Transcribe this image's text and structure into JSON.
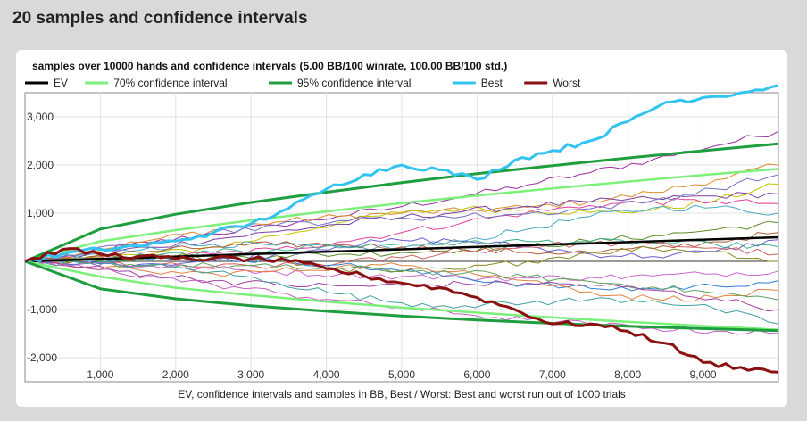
{
  "page": {
    "title": "20 samples and confidence intervals"
  },
  "chart_data": {
    "type": "line",
    "title": "samples over 10000 hands and confidence intervals (5.00 BB/100 winrate, 100.00 BB/100 std.)",
    "xlabel": "EV, confidence intervals and samples in BB, Best / Worst: Best and worst run out of 1000 trials",
    "ylabel": "",
    "xlim": [
      0,
      10000
    ],
    "ylim": [
      -2500,
      3500
    ],
    "x_ticks": [
      1000,
      2000,
      3000,
      4000,
      5000,
      6000,
      7000,
      8000,
      9000
    ],
    "x_tick_labels": [
      "1,000",
      "2,000",
      "3,000",
      "4,000",
      "5,000",
      "6,000",
      "7,000",
      "8,000",
      "9,000"
    ],
    "y_ticks": [
      -2000,
      -1000,
      1000,
      2000,
      3000
    ],
    "y_tick_labels": [
      "-2,000",
      "-1,000",
      "1,000",
      "2,000",
      "3,000"
    ],
    "grid": true,
    "legend_position": "top",
    "winrate_bb_per_100": 5.0,
    "std_bb_per_100": 100.0,
    "series": [
      {
        "name": "EV",
        "color": "#000000",
        "x": [
          0,
          10000
        ],
        "values": [
          0,
          500
        ]
      },
      {
        "name": "70% confidence interval",
        "color": "#7cf07a",
        "x": [
          0,
          1000,
          2000,
          3000,
          4000,
          5000,
          6000,
          7000,
          8000,
          9000,
          10000
        ],
        "values_upper": [
          0,
          416,
          648,
          852,
          1037,
          1207,
          1365,
          1514,
          1656,
          1790,
          1919
        ],
        "values_lower": [
          0,
          -316,
          -548,
          -702,
          -837,
          -957,
          -1065,
          -1164,
          -1256,
          -1340,
          -1419
        ]
      },
      {
        "name": "95% confidence interval",
        "color": "#1e9e3e",
        "x": [
          0,
          1000,
          2000,
          3000,
          4000,
          5000,
          6000,
          7000,
          8000,
          9000,
          10000
        ],
        "values_upper": [
          0,
          670,
          977,
          1223,
          1436,
          1636,
          1818,
          1987,
          2147,
          2297,
          2440
        ],
        "values_lower": [
          0,
          -570,
          -777,
          -923,
          -1036,
          -1136,
          -1218,
          -1287,
          -1347,
          -1397,
          -1440
        ]
      },
      {
        "name": "Best",
        "color": "#33c3f0",
        "x": [
          0,
          500,
          1000,
          1500,
          2000,
          2500,
          3000,
          3500,
          4000,
          4500,
          5000,
          5500,
          6000,
          6500,
          7000,
          7500,
          8000,
          8500,
          9000,
          9500,
          10000
        ],
        "values": [
          0,
          150,
          250,
          320,
          420,
          600,
          780,
          1100,
          1500,
          1800,
          2000,
          1900,
          1700,
          2100,
          2300,
          2500,
          2900,
          3300,
          3400,
          3500,
          3650
        ]
      },
      {
        "name": "Worst",
        "color": "#8b1010",
        "x": [
          0,
          500,
          1000,
          1500,
          2000,
          2500,
          3000,
          3500,
          4000,
          4500,
          5000,
          5500,
          6000,
          6500,
          7000,
          7500,
          8000,
          8500,
          9000,
          9500,
          10000
        ],
        "values": [
          0,
          250,
          150,
          100,
          50,
          60,
          50,
          0,
          -150,
          -300,
          -450,
          -550,
          -750,
          -1000,
          -1300,
          -1300,
          -1450,
          -1700,
          -2100,
          -2200,
          -2300
        ]
      }
    ],
    "samples": [
      {
        "color": "#9b2ea0",
        "end": 2700
      },
      {
        "color": "#d98a2b",
        "end": 2000
      },
      {
        "color": "#c4c400",
        "end": 1600
      },
      {
        "color": "#7a3e9d",
        "end": 1400
      },
      {
        "color": "#e0409a",
        "end": 1200
      },
      {
        "color": "#4aa8c0",
        "end": 1000
      },
      {
        "color": "#5a8f29",
        "end": 800
      },
      {
        "color": "#b05a3a",
        "end": 600
      },
      {
        "color": "#6a5acd",
        "end": 450
      },
      {
        "color": "#3bb08f",
        "end": 300
      },
      {
        "color": "#d06060",
        "end": 150
      },
      {
        "color": "#8a8a20",
        "end": 0
      },
      {
        "color": "#cc66cc",
        "end": -200
      },
      {
        "color": "#2f7fd0",
        "end": -400
      },
      {
        "color": "#e08040",
        "end": -600
      },
      {
        "color": "#60a060",
        "end": -800
      },
      {
        "color": "#a040a0",
        "end": -1000
      },
      {
        "color": "#40a0a0",
        "end": -1300
      },
      {
        "color": "#c060c0",
        "end": -1500
      },
      {
        "color": "#7070c0",
        "end": 1800
      }
    ]
  }
}
